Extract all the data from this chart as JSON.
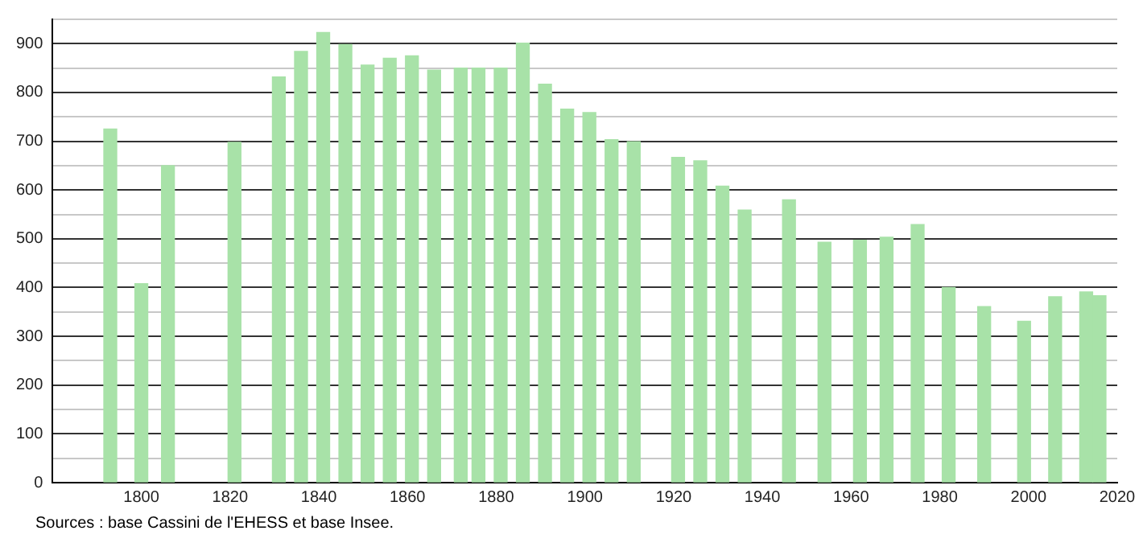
{
  "chart_data": {
    "type": "bar",
    "color": "#a8e2a8",
    "x": [
      1793,
      1800,
      1806,
      1821,
      1831,
      1836,
      1841,
      1846,
      1851,
      1856,
      1861,
      1866,
      1872,
      1876,
      1881,
      1886,
      1891,
      1896,
      1901,
      1906,
      1911,
      1921,
      1926,
      1931,
      1936,
      1946,
      1954,
      1962,
      1968,
      1975,
      1982,
      1990,
      1999,
      2006,
      2013,
      2016
    ],
    "values": [
      725,
      408,
      650,
      698,
      832,
      884,
      923,
      898,
      856,
      870,
      875,
      846,
      850,
      850,
      850,
      901,
      817,
      766,
      759,
      703,
      699,
      667,
      660,
      608,
      559,
      580,
      493,
      497,
      503,
      529,
      400,
      361,
      331,
      381,
      391,
      383
    ],
    "xlim": [
      1780,
      2020
    ],
    "xticks": [
      1800,
      1820,
      1840,
      1860,
      1880,
      1900,
      1920,
      1940,
      1960,
      1980,
      2000,
      2020
    ],
    "ylim": [
      0,
      950
    ],
    "yticks": [
      0,
      {
        "value": 50,
        "label": null
      },
      100,
      {
        "value": 150,
        "label": null
      },
      200,
      {
        "value": 250,
        "label": null
      },
      300,
      {
        "value": 350,
        "label": null
      },
      400,
      {
        "value": 450,
        "label": null
      },
      500,
      {
        "value": 550,
        "label": null
      },
      600,
      {
        "value": 650,
        "label": null
      },
      700,
      {
        "value": 750,
        "label": null
      },
      800,
      {
        "value": 850,
        "label": null
      },
      900,
      {
        "value": 950,
        "label": null
      }
    ],
    "grid": "y",
    "annotations": [
      "Sources : base Cassini de l'EHESS et base Insee."
    ]
  }
}
